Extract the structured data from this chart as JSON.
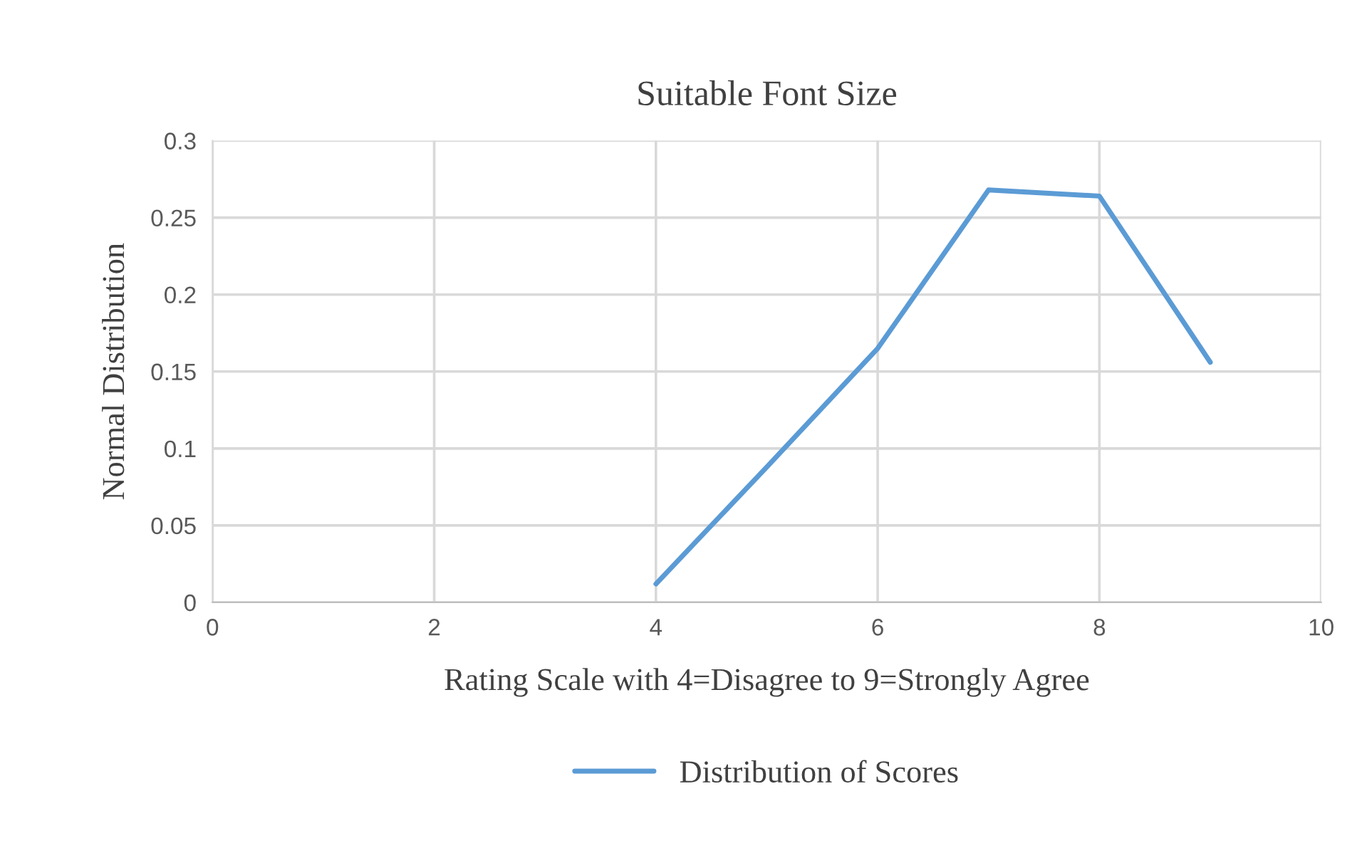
{
  "chart_data": {
    "type": "line",
    "title": "Suitable Font Size",
    "xlabel": "Rating Scale with 4=Disagree to 9=Strongly Agree",
    "ylabel": "Normal Distribution",
    "x": [
      4,
      5,
      6,
      7,
      8,
      9
    ],
    "series": [
      {
        "name": "Distribution of Scores",
        "color": "#5b9bd5",
        "values": [
          0.012,
          0.088,
          0.165,
          0.268,
          0.264,
          0.156
        ]
      }
    ],
    "xlim": [
      0,
      10
    ],
    "xticks": [
      0,
      2,
      4,
      6,
      8,
      10
    ],
    "ylim": [
      0,
      0.3
    ],
    "yticks": [
      0,
      0.05,
      0.1,
      0.15,
      0.2,
      0.25,
      0.3
    ],
    "grid": true,
    "legend": "bottom",
    "marker": "none",
    "line_style": "solid"
  }
}
